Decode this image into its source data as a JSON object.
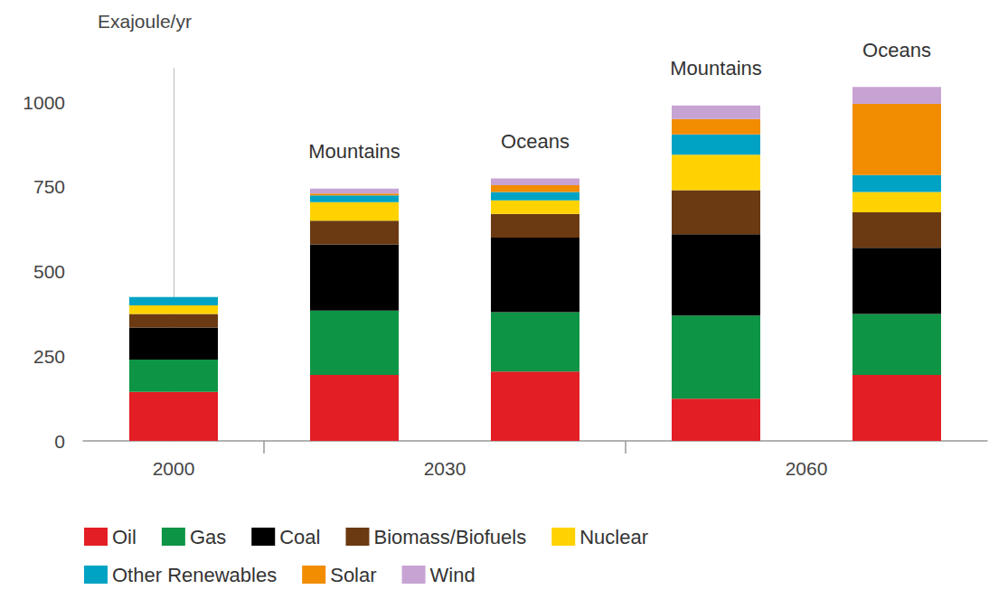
{
  "chart_data": {
    "type": "bar",
    "stacked": true,
    "y_label": "Exajoule/yr",
    "categories": [
      null,
      "Mountains",
      "Oceans",
      "Mountains",
      "Oceans"
    ],
    "groups": [
      {
        "label": "2000",
        "size": 1
      },
      {
        "label": "2030",
        "size": 2
      },
      {
        "label": "2060",
        "size": 2
      }
    ],
    "series": [
      {
        "name": "Oil",
        "color": "#e31e24",
        "values": [
          145,
          195,
          205,
          125,
          195
        ]
      },
      {
        "name": "Gas",
        "color": "#0e9445",
        "values": [
          95,
          190,
          175,
          245,
          180
        ]
      },
      {
        "name": "Coal",
        "color": "#000000",
        "values": [
          95,
          195,
          220,
          240,
          195
        ]
      },
      {
        "name": "Biomass/Biofuels",
        "color": "#6b3a12",
        "values": [
          40,
          70,
          70,
          130,
          105
        ]
      },
      {
        "name": "Nuclear",
        "color": "#ffd200",
        "values": [
          25,
          55,
          40,
          105,
          60
        ]
      },
      {
        "name": "Other Renewables",
        "color": "#00a3c4",
        "values": [
          25,
          20,
          25,
          60,
          50
        ]
      },
      {
        "name": "Solar",
        "color": "#f28c00",
        "values": [
          0,
          5,
          20,
          45,
          210
        ]
      },
      {
        "name": "Wind",
        "color": "#c7a3d3",
        "values": [
          0,
          15,
          20,
          40,
          50
        ]
      }
    ],
    "ylim": [
      0,
      1100
    ],
    "yticks": [
      0,
      250,
      500,
      750,
      1000
    ],
    "grid": false,
    "legend": "bottom"
  }
}
